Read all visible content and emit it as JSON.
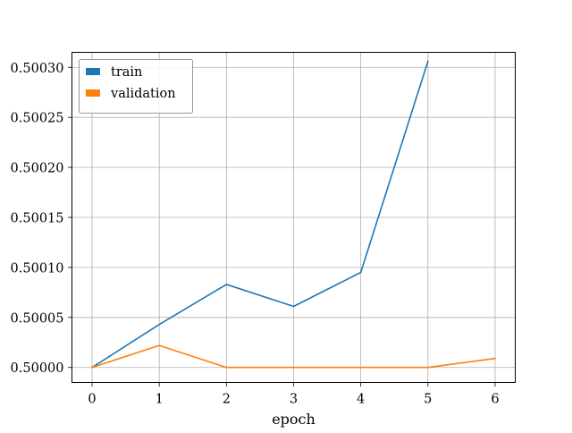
{
  "chart_data": {
    "type": "line",
    "title": "",
    "xlabel": "epoch",
    "ylabel": "",
    "xlim": [
      -0.3,
      6.3
    ],
    "ylim": [
      0.499985,
      0.500315
    ],
    "grid": true,
    "legend_position": "top-left",
    "x_ticks": [
      0,
      1,
      2,
      3,
      4,
      5,
      6
    ],
    "y_ticks": [
      0.5,
      0.50005,
      0.5001,
      0.50015,
      0.5002,
      0.50025,
      0.5003
    ],
    "x_tick_labels": [
      "0",
      "1",
      "2",
      "3",
      "4",
      "5",
      "6"
    ],
    "y_tick_labels": [
      "0.50000",
      "0.50005",
      "0.50010",
      "0.50015",
      "0.50020",
      "0.50025",
      "0.50030"
    ],
    "series": [
      {
        "name": "train",
        "color": "#1f77b4",
        "x": [
          0,
          1,
          2,
          3,
          4,
          5
        ],
        "values": [
          0.5,
          0.500043,
          0.500083,
          0.500061,
          0.500095,
          0.500306
        ]
      },
      {
        "name": "validation",
        "color": "#ff7f0e",
        "x": [
          0,
          1,
          2,
          3,
          4,
          5,
          6
        ],
        "values": [
          0.5,
          0.500022,
          0.5,
          0.5,
          0.5,
          0.5,
          0.500009
        ]
      }
    ]
  }
}
